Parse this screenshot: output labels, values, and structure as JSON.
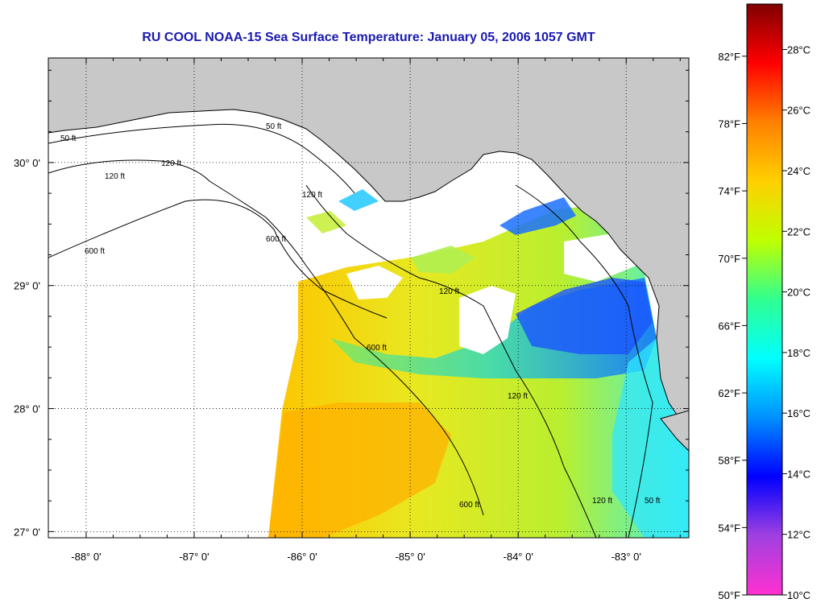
{
  "title": "RU COOL  NOAA-15  Sea Surface Temperature:  January 05, 2006 1057 GMT",
  "map": {
    "lon_range": [
      -88.35,
      -82.42
    ],
    "lat_range": [
      26.95,
      30.85
    ],
    "lon_ticks": [
      {
        "value": -88,
        "label": "-88° 0'"
      },
      {
        "value": -87,
        "label": "-87° 0'"
      },
      {
        "value": -86,
        "label": "-86° 0'"
      },
      {
        "value": -85,
        "label": "-85° 0'"
      },
      {
        "value": -84,
        "label": "-84° 0'"
      },
      {
        "value": -83,
        "label": "-83° 0'"
      }
    ],
    "lat_ticks": [
      {
        "value": 27,
        "label": "27° 0'"
      },
      {
        "value": 28,
        "label": "28° 0'"
      },
      {
        "value": 29,
        "label": "29° 0'"
      },
      {
        "value": 30,
        "label": "30° 0'"
      }
    ],
    "grid": "dotted",
    "contour_labels": [
      "50 ft",
      "120 ft",
      "600 ft"
    ],
    "land_color": "#c8c8c8",
    "no_data_color": "#ffffff"
  },
  "colorbar": {
    "celsius_labels": [
      "28°C",
      "26°C",
      "24°C",
      "22°C",
      "20°C",
      "18°C",
      "16°C",
      "14°C",
      "12°C",
      "10°C"
    ],
    "fahrenheit_labels": [
      "82°F",
      "78°F",
      "74°F",
      "70°F",
      "66°F",
      "62°F",
      "58°F",
      "54°F",
      "50°F"
    ],
    "celsius_range": [
      10,
      29.5
    ],
    "colors": [
      "#ff30d0",
      "#a040e0",
      "#0000ff",
      "#0090ff",
      "#00ffff",
      "#30ff90",
      "#c0ff00",
      "#ffd000",
      "#ff8000",
      "#ff0000",
      "#800000"
    ]
  }
}
